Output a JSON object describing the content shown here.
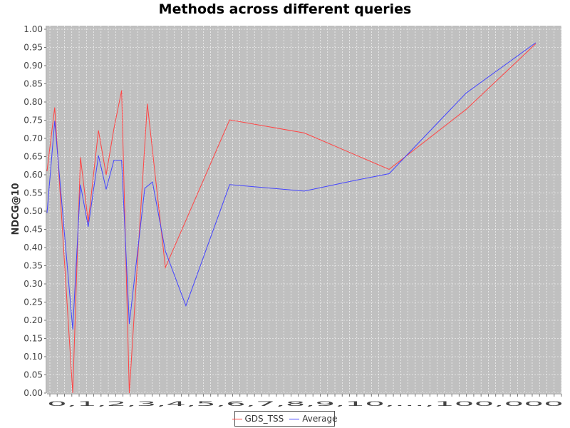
{
  "chart_data": {
    "type": "line",
    "title": "Methods across different queries",
    "xlabel": "",
    "ylabel": "NDCG@10",
    "ylim": [
      0,
      1.0
    ],
    "yticks": [
      "0.00",
      "0.05",
      "0.10",
      "0.15",
      "0.20",
      "0.25",
      "0.30",
      "0.35",
      "0.40",
      "0.45",
      "0.50",
      "0.55",
      "0.60",
      "0.65",
      "0.70",
      "0.75",
      "0.80",
      "0.85",
      "0.90",
      "0.95",
      "1.00"
    ],
    "xlim": [
      0,
      100
    ],
    "x_tick_labels_text": "0,1,2,3,4,5,6,7,8,9,10,...,100,000",
    "legend_position": "bottom",
    "grid": true,
    "background": "#c0c0c0",
    "series": [
      {
        "name": "GDS_TSS",
        "color": "#ff4444",
        "points": [
          [
            0,
            0.61
          ],
          [
            1.5,
            0.785
          ],
          [
            5,
            0.0
          ],
          [
            6.5,
            0.648
          ],
          [
            8,
            0.47
          ],
          [
            10,
            0.722
          ],
          [
            11.5,
            0.6
          ],
          [
            13,
            0.727
          ],
          [
            14.5,
            0.832
          ],
          [
            16,
            0.0
          ],
          [
            19.5,
            0.795
          ],
          [
            23,
            0.345
          ],
          [
            35.5,
            0.751
          ],
          [
            50,
            0.715
          ],
          [
            66.5,
            0.615
          ],
          [
            81.5,
            0.78
          ],
          [
            95,
            0.96
          ]
        ]
      },
      {
        "name": "Average",
        "color": "#4444ff",
        "points": [
          [
            0,
            0.495
          ],
          [
            1.5,
            0.748
          ],
          [
            5,
            0.175
          ],
          [
            6.5,
            0.573
          ],
          [
            8,
            0.457
          ],
          [
            10,
            0.653
          ],
          [
            11.5,
            0.56
          ],
          [
            13,
            0.64
          ],
          [
            14.5,
            0.64
          ],
          [
            16,
            0.19
          ],
          [
            19,
            0.563
          ],
          [
            20.5,
            0.58
          ],
          [
            23,
            0.39
          ],
          [
            27,
            0.24
          ],
          [
            35.5,
            0.573
          ],
          [
            50,
            0.555
          ],
          [
            60,
            0.585
          ],
          [
            66.5,
            0.603
          ],
          [
            81.5,
            0.825
          ],
          [
            95,
            0.963
          ]
        ]
      }
    ]
  }
}
